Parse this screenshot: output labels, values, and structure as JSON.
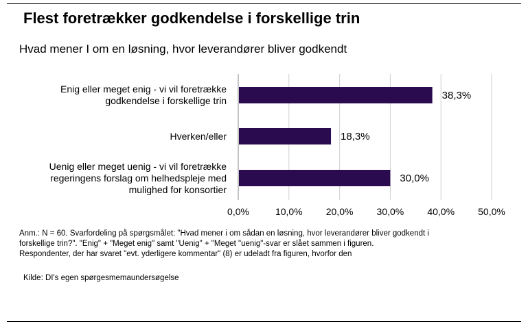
{
  "header": {
    "title": "Flest foretrækker godkendelse i forskellige trin",
    "subtitle": "Hvad mener I om en løsning, hvor leverandører bliver godkendt"
  },
  "chart_data": {
    "type": "bar",
    "orientation": "horizontal",
    "categories": [
      [
        "Enig eller meget enig - vi vil foretrække",
        "godkendelse i forskellige trin"
      ],
      [
        "Hverken/eller"
      ],
      [
        "Uenig eller meget uenig - vi vil foretrække",
        "regeringens forslag om helhedspleje med",
        "mulighed for konsortier"
      ]
    ],
    "values": [
      38.3,
      18.3,
      30.0
    ],
    "value_labels": [
      "38,3%",
      "18,3%",
      "30,0%"
    ],
    "xlim": [
      0,
      50
    ],
    "xticks": [
      0,
      10,
      20,
      30,
      40,
      50
    ],
    "xtick_labels": [
      "0,0%",
      "10,0%",
      "20,0%",
      "30,0%",
      "40,0%",
      "50,0%"
    ],
    "grid": true,
    "bar_color": "#2b0b4f",
    "grid_color": "#d0d0d0"
  },
  "footer": {
    "note_lines": [
      "Anm.: N = 60. Svarfordeling på spørgsmålet: \"Hvad mener i om sådan en løsning, hvor leverandører bliver godkendt i",
      "forskellige trin?\". \"Enig\" + \"Meget enig\" samt \"Uenig\" + \"Meget \"uenig\"-svar er slået sammen i figuren.",
      "Respondenter, der har svaret \"evt. yderligere kommentar\" (8) er udeladt fra figuren, hvorfor den"
    ],
    "source": "Kilde: DI's egen spørgesmemaundersøgelse"
  }
}
